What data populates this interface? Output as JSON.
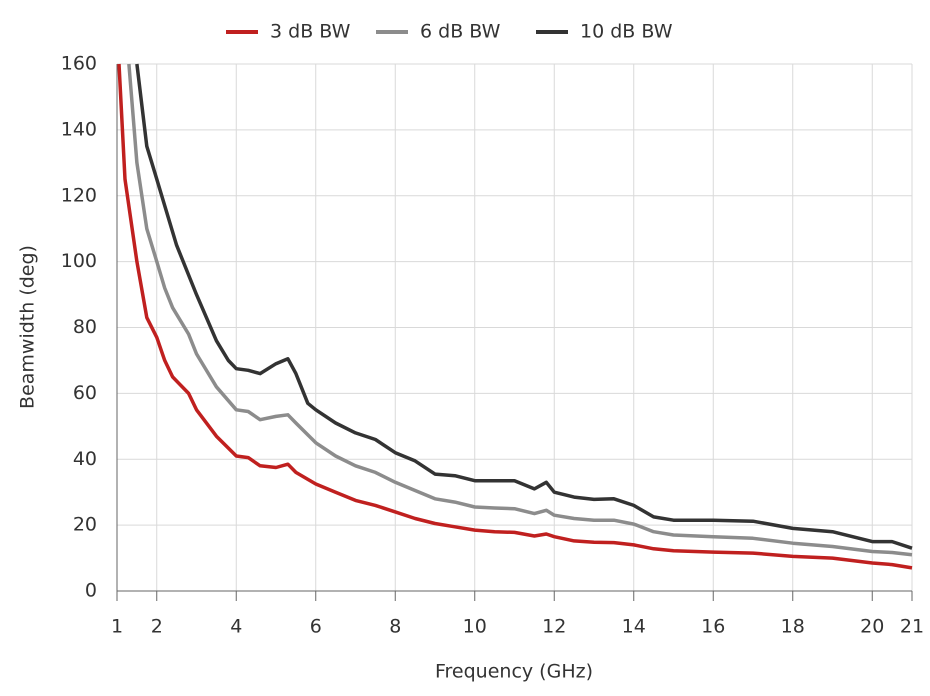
{
  "chart_data": {
    "type": "line",
    "x_label": "Frequency (GHz)",
    "y_label": "Beamwidth (deg)",
    "xlim": [
      1,
      21
    ],
    "ylim": [
      0,
      160
    ],
    "xticks": [
      1,
      2,
      4,
      6,
      8,
      10,
      12,
      14,
      16,
      18,
      20,
      21
    ],
    "yticks": [
      0,
      20,
      40,
      60,
      80,
      100,
      120,
      140,
      160
    ],
    "grid": true,
    "legend": "top",
    "series": [
      {
        "name": "3 dB BW",
        "color": "#c0201f",
        "x": [
          1.05,
          1.2,
          1.5,
          1.75,
          2,
          2.2,
          2.4,
          2.8,
          3,
          3.5,
          4,
          4.3,
          4.6,
          5,
          5.3,
          5.5,
          6,
          6.5,
          7,
          7.5,
          8,
          8.5,
          9,
          9.5,
          10,
          10.5,
          11,
          11.5,
          11.8,
          12,
          12.5,
          13,
          13.5,
          14,
          14.5,
          15,
          16,
          17,
          18,
          19,
          20,
          20.5,
          21
        ],
        "values": [
          160,
          125,
          100,
          83,
          77,
          70,
          65,
          60,
          55,
          47,
          41,
          40.5,
          38,
          37.5,
          38.5,
          36,
          32.5,
          30,
          27.5,
          26,
          24,
          22,
          20.5,
          19.5,
          18.5,
          18,
          17.8,
          16.7,
          17.3,
          16.5,
          15.2,
          14.8,
          14.7,
          14,
          12.8,
          12.2,
          11.8,
          11.5,
          10.5,
          10,
          8.5,
          8,
          7
        ]
      },
      {
        "name": "6 dB BW",
        "color": "#8c8c8c",
        "x": [
          1.3,
          1.5,
          1.75,
          2,
          2.2,
          2.4,
          2.8,
          3,
          3.5,
          4,
          4.3,
          4.6,
          5,
          5.3,
          5.5,
          6,
          6.5,
          7,
          7.5,
          8,
          8.5,
          9,
          9.5,
          10,
          10.5,
          11,
          11.5,
          11.8,
          12,
          12.5,
          13,
          13.5,
          14,
          14.5,
          15,
          16,
          17,
          18,
          19,
          20,
          20.5,
          21
        ],
        "values": [
          160,
          130,
          110,
          100,
          92,
          86,
          78,
          72,
          62,
          55,
          54.5,
          52,
          53,
          53.5,
          51,
          45,
          41,
          38,
          36,
          33,
          30.5,
          28,
          27,
          25.5,
          25.2,
          25,
          23.5,
          24.5,
          23,
          22,
          21.5,
          21.5,
          20.3,
          18,
          17,
          16.5,
          16,
          14.5,
          13.5,
          12,
          11.7,
          11
        ]
      },
      {
        "name": "10 dB BW",
        "color": "#333333",
        "x": [
          1.5,
          1.75,
          2,
          2.2,
          2.5,
          3,
          3.5,
          3.8,
          4,
          4.3,
          4.6,
          5,
          5.3,
          5.5,
          5.8,
          6,
          6.5,
          7,
          7.5,
          8,
          8.5,
          9,
          9.5,
          10,
          10.5,
          11,
          11.5,
          11.8,
          12,
          12.5,
          13,
          13.5,
          14,
          14.5,
          15,
          16,
          17,
          18,
          19,
          20,
          20.5,
          21
        ],
        "values": [
          160,
          135,
          125,
          117,
          105,
          90,
          76,
          70,
          67.5,
          67,
          66,
          69,
          70.5,
          66,
          57,
          55,
          51,
          48,
          46,
          42,
          39.5,
          35.5,
          35,
          33.5,
          33.5,
          33.5,
          31,
          33,
          30,
          28.5,
          27.8,
          28,
          26,
          22.5,
          21.5,
          21.5,
          21.2,
          19,
          18,
          15,
          15,
          13
        ]
      }
    ]
  }
}
